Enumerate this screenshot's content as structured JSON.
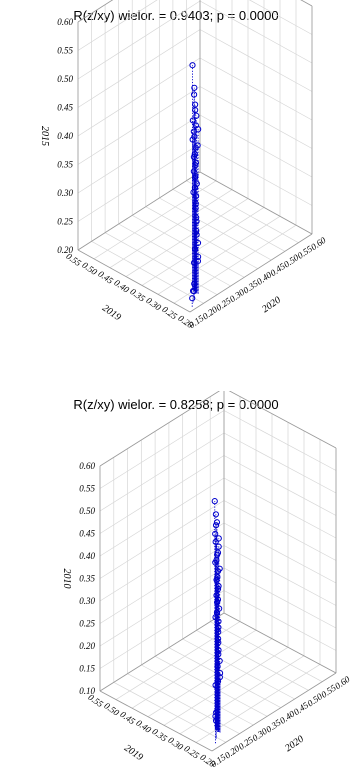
{
  "chart_data": [
    {
      "type": "scatter",
      "title": "R(z/xy) wielor. = 0.9403; p = 0.0000",
      "xlabel": "2019",
      "ylabel": "2020",
      "zlabel": "2015",
      "x_ticks": [
        "0.20",
        "0.25",
        "0.30",
        "0.35",
        "0.40",
        "0.45",
        "0.50",
        "0.55"
      ],
      "y_ticks": [
        "0.15",
        "0.20",
        "0.25",
        "0.30",
        "0.35",
        "0.40",
        "0.45",
        "0.50",
        "0.55",
        "0.60"
      ],
      "z_ticks": [
        "0.20",
        "0.25",
        "0.30",
        "0.35",
        "0.40",
        "0.45",
        "0.50",
        "0.55",
        "0.60"
      ],
      "xlim": [
        0.2,
        0.55
      ],
      "ylim": [
        0.15,
        0.6
      ],
      "zlim": [
        0.2,
        0.6
      ],
      "grid": true,
      "marker_color": "#0000cc",
      "points": [
        {
          "x": 0.26,
          "y": 0.23,
          "z": 0.59
        },
        {
          "x": 0.25,
          "y": 0.225,
          "z": 0.555
        },
        {
          "x": 0.255,
          "y": 0.23,
          "z": 0.54
        },
        {
          "x": 0.245,
          "y": 0.222,
          "z": 0.528
        },
        {
          "x": 0.25,
          "y": 0.228,
          "z": 0.515
        },
        {
          "x": 0.248,
          "y": 0.23,
          "z": 0.505
        },
        {
          "x": 0.252,
          "y": 0.222,
          "z": 0.498
        },
        {
          "x": 0.246,
          "y": 0.226,
          "z": 0.49
        },
        {
          "x": 0.244,
          "y": 0.232,
          "z": 0.482
        },
        {
          "x": 0.254,
          "y": 0.228,
          "z": 0.476
        },
        {
          "x": 0.249,
          "y": 0.224,
          "z": 0.47
        },
        {
          "x": 0.256,
          "y": 0.226,
          "z": 0.462
        },
        {
          "x": 0.243,
          "y": 0.229,
          "z": 0.455
        },
        {
          "x": 0.251,
          "y": 0.231,
          "z": 0.448
        },
        {
          "x": 0.247,
          "y": 0.223,
          "z": 0.44
        },
        {
          "x": 0.253,
          "y": 0.227,
          "z": 0.432
        },
        {
          "x": 0.245,
          "y": 0.225,
          "z": 0.425
        },
        {
          "x": 0.25,
          "y": 0.229,
          "z": 0.418
        },
        {
          "x": 0.248,
          "y": 0.221,
          "z": 0.41
        },
        {
          "x": 0.246,
          "y": 0.224,
          "z": 0.402
        },
        {
          "x": 0.252,
          "y": 0.23,
          "z": 0.395
        },
        {
          "x": 0.244,
          "y": 0.227,
          "z": 0.388
        },
        {
          "x": 0.249,
          "y": 0.226,
          "z": 0.38
        },
        {
          "x": 0.251,
          "y": 0.223,
          "z": 0.372
        },
        {
          "x": 0.247,
          "y": 0.228,
          "z": 0.365
        },
        {
          "x": 0.243,
          "y": 0.222,
          "z": 0.355
        },
        {
          "x": 0.246,
          "y": 0.225,
          "z": 0.345
        },
        {
          "x": 0.24,
          "y": 0.22,
          "z": 0.332
        },
        {
          "x": 0.244,
          "y": 0.226,
          "z": 0.322
        },
        {
          "x": 0.238,
          "y": 0.218,
          "z": 0.31
        },
        {
          "x": 0.242,
          "y": 0.224,
          "z": 0.3
        },
        {
          "x": 0.236,
          "y": 0.222,
          "z": 0.288
        },
        {
          "x": 0.24,
          "y": 0.216,
          "z": 0.278
        },
        {
          "x": 0.234,
          "y": 0.22,
          "z": 0.265
        },
        {
          "x": 0.238,
          "y": 0.224,
          "z": 0.255
        },
        {
          "x": 0.255,
          "y": 0.23,
          "z": 0.245
        },
        {
          "x": 0.21,
          "y": 0.17,
          "z": 0.215
        },
        {
          "x": 0.22,
          "y": 0.185,
          "z": 0.22
        },
        {
          "x": 0.225,
          "y": 0.195,
          "z": 0.228
        },
        {
          "x": 0.23,
          "y": 0.2,
          "z": 0.212
        }
      ]
    },
    {
      "type": "scatter",
      "title": "R(z/xy) wielor. = 0.8258; p = 0.0000",
      "xlabel": "2019",
      "ylabel": "2020",
      "zlabel": "2010",
      "x_ticks": [
        "0.20",
        "0.25",
        "0.30",
        "0.35",
        "0.40",
        "0.45",
        "0.50",
        "0.55"
      ],
      "y_ticks": [
        "0.15",
        "0.20",
        "0.25",
        "0.30",
        "0.35",
        "0.40",
        "0.45",
        "0.50",
        "0.55",
        "0.60"
      ],
      "z_ticks": [
        "0.10",
        "0.15",
        "0.20",
        "0.25",
        "0.30",
        "0.35",
        "0.40",
        "0.45",
        "0.50",
        "0.55",
        "0.60"
      ],
      "xlim": [
        0.2,
        0.55
      ],
      "ylim": [
        0.15,
        0.6
      ],
      "zlim": [
        0.1,
        0.6
      ],
      "grid": true,
      "marker_color": "#0000cc",
      "points": [
        {
          "x": 0.262,
          "y": 0.232,
          "z": 0.6
        },
        {
          "x": 0.255,
          "y": 0.228,
          "z": 0.575
        },
        {
          "x": 0.25,
          "y": 0.226,
          "z": 0.56
        },
        {
          "x": 0.258,
          "y": 0.232,
          "z": 0.548
        },
        {
          "x": 0.252,
          "y": 0.222,
          "z": 0.535
        },
        {
          "x": 0.246,
          "y": 0.228,
          "z": 0.525
        },
        {
          "x": 0.254,
          "y": 0.226,
          "z": 0.515
        },
        {
          "x": 0.248,
          "y": 0.23,
          "z": 0.505
        },
        {
          "x": 0.245,
          "y": 0.224,
          "z": 0.495
        },
        {
          "x": 0.252,
          "y": 0.229,
          "z": 0.486
        },
        {
          "x": 0.249,
          "y": 0.223,
          "z": 0.477
        },
        {
          "x": 0.256,
          "y": 0.227,
          "z": 0.468
        },
        {
          "x": 0.244,
          "y": 0.229,
          "z": 0.458
        },
        {
          "x": 0.251,
          "y": 0.231,
          "z": 0.449
        },
        {
          "x": 0.247,
          "y": 0.224,
          "z": 0.44
        },
        {
          "x": 0.253,
          "y": 0.228,
          "z": 0.43
        },
        {
          "x": 0.245,
          "y": 0.226,
          "z": 0.42
        },
        {
          "x": 0.25,
          "y": 0.23,
          "z": 0.41
        },
        {
          "x": 0.248,
          "y": 0.222,
          "z": 0.4
        },
        {
          "x": 0.246,
          "y": 0.225,
          "z": 0.39
        },
        {
          "x": 0.252,
          "y": 0.229,
          "z": 0.38
        },
        {
          "x": 0.244,
          "y": 0.227,
          "z": 0.37
        },
        {
          "x": 0.249,
          "y": 0.225,
          "z": 0.36
        },
        {
          "x": 0.251,
          "y": 0.222,
          "z": 0.35
        },
        {
          "x": 0.247,
          "y": 0.228,
          "z": 0.34
        },
        {
          "x": 0.243,
          "y": 0.223,
          "z": 0.33
        },
        {
          "x": 0.246,
          "y": 0.226,
          "z": 0.318
        },
        {
          "x": 0.242,
          "y": 0.221,
          "z": 0.306
        },
        {
          "x": 0.245,
          "y": 0.225,
          "z": 0.295
        },
        {
          "x": 0.24,
          "y": 0.22,
          "z": 0.282
        },
        {
          "x": 0.244,
          "y": 0.224,
          "z": 0.27
        },
        {
          "x": 0.238,
          "y": 0.222,
          "z": 0.258
        },
        {
          "x": 0.242,
          "y": 0.219,
          "z": 0.245
        },
        {
          "x": 0.236,
          "y": 0.221,
          "z": 0.232
        },
        {
          "x": 0.24,
          "y": 0.225,
          "z": 0.22
        },
        {
          "x": 0.25,
          "y": 0.23,
          "z": 0.205
        },
        {
          "x": 0.256,
          "y": 0.228,
          "z": 0.195
        },
        {
          "x": 0.215,
          "y": 0.18,
          "z": 0.16
        },
        {
          "x": 0.23,
          "y": 0.2,
          "z": 0.155
        },
        {
          "x": 0.226,
          "y": 0.195,
          "z": 0.14
        }
      ]
    }
  ]
}
